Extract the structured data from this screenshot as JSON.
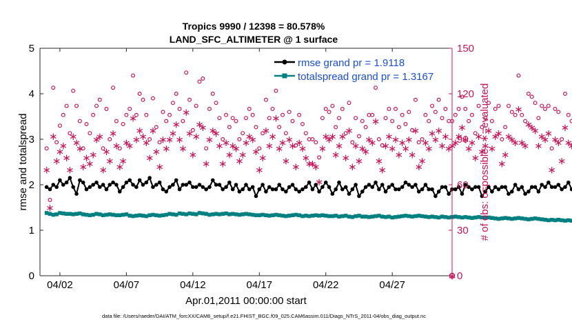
{
  "chart_data": {
    "type": "line",
    "title": "Tropics 9990 / 12398 = 80.578%",
    "subtitle": "LAND_SFC_ALTIMETER @ 1 surface",
    "xlabel": "Apr.01,2011 00:00:00 start",
    "ylabel_left": "rmse and totalspread",
    "ylabel_right": "# of obs: o=possible; ∗=evaluated",
    "xlim": [
      0.5,
      31.5
    ],
    "ylim_left": [
      0,
      5
    ],
    "ylim_right": [
      0,
      150
    ],
    "x_ticks": [
      {
        "value": 2,
        "label": "04/02"
      },
      {
        "value": 7,
        "label": "04/07"
      },
      {
        "value": 12,
        "label": "04/12"
      },
      {
        "value": 17,
        "label": "04/17"
      },
      {
        "value": 22,
        "label": "04/22"
      },
      {
        "value": 27,
        "label": "04/27"
      }
    ],
    "y_ticks_left": [
      "0",
      "1",
      "2",
      "3",
      "4",
      "5"
    ],
    "y_ticks_right": [
      "0",
      "30",
      "60",
      "90",
      "120",
      "150"
    ],
    "legend": {
      "placement": "top-right",
      "entries": [
        "rmse grand pr = 1.9118",
        "totalspread grand pr = 1.3167"
      ]
    },
    "colors": {
      "rmse": "#000000",
      "spread": "#008080",
      "obs": "#c8145a"
    },
    "series": [
      {
        "name": "rmse",
        "values": [
          1.95,
          1.9,
          2.0,
          1.95,
          2.1,
          2.0,
          2.05,
          2.15,
          1.95,
          1.8,
          2.1,
          2.05,
          1.9,
          1.95,
          2.0,
          2.05,
          1.95,
          2.0,
          1.9,
          2.0,
          2.05,
          2.0,
          1.85,
          1.95,
          2.05,
          2.1,
          2.0,
          1.95,
          2.1,
          2.0,
          2.05,
          2.15,
          1.95,
          2.0,
          2.05,
          1.9,
          1.85,
          1.95,
          2.0,
          2.1,
          1.9,
          2.0,
          2.0,
          2.05,
          1.95,
          1.95,
          2.0,
          1.95,
          1.9,
          1.95,
          2.1,
          2.0,
          2.0,
          1.9,
          1.95,
          2.05,
          1.9,
          2.0,
          1.85,
          1.9,
          2.0,
          1.9,
          1.95,
          1.75,
          1.9,
          2.0,
          1.85,
          1.95,
          1.9,
          1.9,
          2.0,
          1.9,
          1.85,
          1.95,
          2.0,
          1.9,
          1.85,
          1.9,
          1.95,
          2.05,
          1.9,
          2.0,
          1.85,
          1.95,
          2.05,
          1.95,
          1.8,
          1.9,
          2.05,
          1.9,
          1.95,
          1.8,
          1.9,
          2.0,
          1.75,
          1.85,
          1.95,
          2.0,
          1.95,
          2.05,
          1.9,
          2.0,
          1.85,
          1.95,
          2.0,
          1.9,
          1.9,
          1.95,
          2.05,
          2.0,
          1.95,
          2.0,
          1.85,
          1.9,
          2.0,
          1.9,
          1.9,
          1.75,
          1.85,
          1.95,
          1.95,
          1.8,
          1.9,
          1.9,
          1.95,
          1.8,
          2.0,
          1.95,
          1.9,
          1.95,
          1.95,
          1.75,
          1.85,
          1.95,
          1.85,
          1.95,
          1.9,
          1.95,
          1.95,
          1.8,
          1.85,
          2.0,
          1.9,
          1.95,
          1.8,
          1.85,
          1.95,
          1.95,
          1.85,
          2.0,
          1.95,
          2.05,
          1.95,
          1.95,
          2.0,
          1.9,
          1.95,
          2.05,
          1.9,
          2.0,
          2.0,
          1.95,
          2.05,
          1.95,
          2.0,
          1.95,
          1.95,
          1.95,
          1.85,
          1.95,
          1.95,
          1.9,
          2.0,
          1.75,
          1.85,
          2.0,
          1.95,
          2.1,
          1.9,
          1.75,
          1.85,
          1.95,
          2.05,
          1.9,
          1.95,
          2.0,
          1.9,
          2.05,
          1.9,
          1.85,
          1.95,
          2.0,
          1.85,
          2.05,
          1.9,
          1.95,
          2.05,
          1.95,
          1.95,
          2.0,
          1.95,
          2.0,
          2.05,
          2.0,
          1.9,
          1.8,
          1.95,
          2.05,
          2.0,
          1.9,
          1.85,
          1.95,
          2.05,
          1.95,
          2.0,
          1.95,
          1.9,
          1.9,
          2.0,
          2.05,
          1.85,
          1.95,
          2.0,
          1.95,
          1.7,
          1.8,
          1.95,
          1.95,
          1.95,
          1.85,
          1.95,
          1.95,
          1.9,
          2.0,
          1.9,
          1.95,
          2.0,
          1.85,
          2.05,
          1.95,
          1.85,
          2.0,
          1.95,
          1.85,
          1.95,
          1.95,
          1.8,
          1.85,
          1.95,
          2.0,
          1.9,
          1.95,
          1.95,
          2.0,
          1.95,
          1.8,
          1.9,
          1.95,
          2.0,
          2.0,
          2.0,
          1.95,
          1.95,
          1.85,
          2.0,
          1.9,
          1.9,
          1.95,
          1.95,
          1.95,
          2.0,
          2.0,
          1.95,
          1.7,
          1.8,
          1.95,
          1.95,
          2.0,
          1.9,
          1.85,
          1.95,
          1.9
        ]
      },
      {
        "name": "totalspread",
        "values": [
          1.38,
          1.36,
          1.34,
          1.35,
          1.38,
          1.37,
          1.36,
          1.36,
          1.35,
          1.36,
          1.37,
          1.35,
          1.34,
          1.33,
          1.34,
          1.36,
          1.35,
          1.33,
          1.34,
          1.35,
          1.34,
          1.33,
          1.33,
          1.34,
          1.35,
          1.32,
          1.31,
          1.32,
          1.33,
          1.32,
          1.31,
          1.33,
          1.34,
          1.33,
          1.32,
          1.33,
          1.34,
          1.36,
          1.35,
          1.34,
          1.37,
          1.36,
          1.35,
          1.37,
          1.36,
          1.35,
          1.38,
          1.37,
          1.36,
          1.34,
          1.35,
          1.36,
          1.35,
          1.36,
          1.37,
          1.35,
          1.36,
          1.35,
          1.34,
          1.35,
          1.36,
          1.35,
          1.34,
          1.33,
          1.33,
          1.34,
          1.33,
          1.32,
          1.33,
          1.34,
          1.33,
          1.32,
          1.31,
          1.32,
          1.33,
          1.34,
          1.33,
          1.31,
          1.32,
          1.31,
          1.32,
          1.33,
          1.32,
          1.33,
          1.32,
          1.31,
          1.31,
          1.32,
          1.3,
          1.31,
          1.32,
          1.3,
          1.29,
          1.31,
          1.32,
          1.3,
          1.3,
          1.29,
          1.3,
          1.31,
          1.32,
          1.3,
          1.29,
          1.3,
          1.28,
          1.29,
          1.3,
          1.31,
          1.32,
          1.31,
          1.3,
          1.31,
          1.32,
          1.31,
          1.3,
          1.29,
          1.3,
          1.29,
          1.28,
          1.3,
          1.29,
          1.28,
          1.29,
          1.3,
          1.29,
          1.28,
          1.29,
          1.28,
          1.27,
          1.28,
          1.29,
          1.28,
          1.27,
          1.28,
          1.27,
          1.26,
          1.25,
          1.26,
          1.27,
          1.26,
          1.25,
          1.26,
          1.27,
          1.26,
          1.25,
          1.24,
          1.25,
          1.26,
          1.25,
          1.24,
          1.23,
          1.22,
          1.23,
          1.22,
          1.23,
          1.22,
          1.21,
          1.22,
          1.21,
          1.21,
          1.22,
          1.23,
          1.22,
          1.21,
          1.2,
          1.21,
          1.22,
          1.21,
          1.22,
          1.23,
          1.22,
          1.21,
          1.22,
          1.23,
          1.24,
          1.23,
          1.22,
          1.23,
          1.24,
          1.23,
          1.24,
          1.25,
          1.26,
          1.25,
          1.24,
          1.25,
          1.26,
          1.27,
          1.26,
          1.25,
          1.26,
          1.27,
          1.28,
          1.27,
          1.26,
          1.27,
          1.28,
          1.29,
          1.28,
          1.27,
          1.28,
          1.29,
          1.3,
          1.29,
          1.28,
          1.29,
          1.3,
          1.31,
          1.3,
          1.29,
          1.3,
          1.31,
          1.32,
          1.31,
          1.3,
          1.31,
          1.32,
          1.33,
          1.32,
          1.31,
          1.32,
          1.33,
          1.32,
          1.31,
          1.3,
          1.31,
          1.32,
          1.31,
          1.3,
          1.31,
          1.3,
          1.29,
          1.3,
          1.29,
          1.28,
          1.29,
          1.3,
          1.29,
          1.28,
          1.29,
          1.3,
          1.29,
          1.28,
          1.29,
          1.3,
          1.31,
          1.3,
          1.29,
          1.3,
          1.31,
          1.3,
          1.29,
          1.3,
          1.31,
          1.3,
          1.29,
          1.28,
          1.29,
          1.3,
          1.31,
          1.3,
          1.29,
          1.28,
          1.29,
          1.3,
          1.31,
          1.32,
          1.31,
          1.3,
          1.29,
          1.3,
          1.31,
          1.3,
          1.29,
          1.3,
          1.3,
          1.31,
          1.3,
          1.3,
          1.31
        ]
      },
      {
        "name": "obs_possible",
        "values": [
          84,
          50,
          124,
          88,
          99,
          106,
          112,
          94,
          122,
          112,
          102,
          84,
          100,
          94,
          106,
          112,
          116,
          84,
          110,
          90,
          124,
          102,
          84,
          100,
          106,
          110,
          132,
          106,
          120,
          116,
          106,
          90,
          117,
          98,
          88,
          108,
          102,
          106,
          114,
          120,
          110,
          102,
          134,
          116,
          96,
          112,
          128,
          130,
          84,
          110,
          120,
          114,
          104,
          90,
          106,
          98,
          104,
          102,
          90,
          94,
          104,
          110,
          106,
          98,
          84,
          94,
          116,
          104,
          110,
          122,
          98,
          106,
          94,
          108,
          102,
          86,
          106,
          100,
          94,
          90,
          90,
          88,
          78,
          104,
          110,
          108,
          112,
          98,
          104,
          110,
          94,
          114,
          88,
          104,
          92,
          102,
          98,
          106,
          106,
          124,
          90,
          86,
          104,
          110,
          102,
          110,
          98,
          106,
          100,
          108,
          96,
          116,
          88,
          90,
          106,
          102,
          112,
          108,
          116,
          104,
          110,
          102,
          102,
          106,
          110,
          118,
          110,
          102,
          106,
          94,
          112,
          98,
          104,
          114,
          102,
          110,
          112,
          90,
          98,
          112,
          108,
          106,
          132,
          106,
          102,
          120,
          118,
          114,
          104,
          112,
          110,
          112,
          84,
          110,
          108,
          90,
          120,
          106,
          102,
          96,
          110,
          116,
          106,
          84,
          110,
          116,
          100,
          108,
          112,
          118,
          114,
          98,
          102,
          110,
          106,
          94,
          108,
          110,
          102,
          106,
          94,
          102,
          108,
          110,
          86,
          102,
          104,
          114,
          112,
          110,
          120,
          106,
          104,
          102,
          112,
          106,
          96,
          98,
          108,
          112,
          104,
          114,
          110,
          104,
          118,
          106,
          104,
          102,
          106,
          106,
          112,
          114,
          110,
          108,
          116,
          102,
          94,
          102,
          110,
          104,
          108,
          106,
          110,
          112,
          100,
          108,
          120,
          132,
          102,
          108,
          94,
          106,
          110,
          104,
          112,
          118,
          106,
          114,
          94,
          110,
          104,
          112,
          102,
          108,
          96,
          106,
          110,
          90,
          112,
          102,
          94,
          110,
          114,
          104,
          118,
          108,
          102,
          96,
          110,
          104,
          112,
          100,
          94,
          108,
          104,
          110,
          112,
          116,
          94,
          100,
          102,
          108,
          110,
          96,
          104,
          106,
          90,
          114,
          110,
          96,
          100,
          108,
          104,
          94,
          88,
          98
        ]
      },
      {
        "name": "obs_evaluated",
        "values": [
          70,
          45,
          92,
          76,
          82,
          86,
          78,
          70,
          92,
          88,
          84,
          72,
          78,
          74,
          80,
          90,
          92,
          70,
          82,
          76,
          94,
          86,
          72,
          76,
          88,
          86,
          104,
          90,
          96,
          92,
          88,
          78,
          96,
          82,
          72,
          90,
          84,
          90,
          94,
          100,
          90,
          84,
          108,
          94,
          80,
          92,
          100,
          98,
          74,
          90,
          96,
          94,
          86,
          74,
          88,
          80,
          86,
          84,
          76,
          80,
          88,
          92,
          90,
          82,
          70,
          78,
          96,
          86,
          92,
          104,
          84,
          88,
          76,
          90,
          86,
          72,
          88,
          84,
          78,
          74,
          74,
          72,
          62,
          84,
          92,
          90,
          92,
          80,
          86,
          92,
          78,
          96,
          72,
          86,
          76,
          84,
          82,
          90,
          88,
          102,
          76,
          70,
          86,
          92,
          84,
          90,
          80,
          88,
          84,
          90,
          80,
          96,
          72,
          76,
          88,
          84,
          94,
          90,
          96,
          86,
          92,
          84,
          86,
          88,
          92,
          98,
          90,
          84,
          88,
          78,
          92,
          82,
          86,
          96,
          84,
          92,
          94,
          74,
          80,
          92,
          90,
          88,
          110,
          88,
          86,
          100,
          98,
          96,
          86,
          92,
          90,
          94,
          70,
          90,
          88,
          76,
          98,
          88,
          86,
          80,
          92,
          96,
          88,
          70,
          92,
          96,
          84,
          90,
          94,
          98,
          96,
          82,
          84,
          92,
          88,
          78,
          90,
          92,
          86,
          88,
          78,
          86,
          90,
          92,
          72,
          86,
          88,
          96,
          94,
          92,
          100,
          88,
          86,
          84,
          94,
          88,
          80,
          82,
          90,
          94,
          86,
          96,
          92,
          88,
          98,
          88,
          86,
          86,
          88,
          88,
          94,
          96,
          92,
          90,
          96,
          84,
          78,
          86,
          92,
          86,
          90,
          88,
          92,
          94,
          84,
          90,
          100,
          110,
          86,
          90,
          78,
          88,
          92,
          86,
          94,
          98,
          88,
          96,
          78,
          92,
          86,
          94,
          84,
          90,
          80,
          88,
          92,
          74,
          94,
          86,
          78,
          92,
          96,
          88,
          98,
          90,
          84,
          80,
          92,
          86,
          94,
          84,
          78,
          90,
          86,
          92,
          94,
          96,
          78,
          84,
          86,
          90,
          92,
          80,
          86,
          88,
          74,
          96,
          92,
          80,
          84,
          90,
          86,
          78,
          72,
          82
        ]
      }
    ]
  },
  "footer": "data file: /Users/raeder/DAI/ATM_forcXX/CAM6_setup/f.e21.FHIST_BGC.f09_025.CAM6assim.011/Diags_NTrS_2011-04/obs_diag_output.nc"
}
